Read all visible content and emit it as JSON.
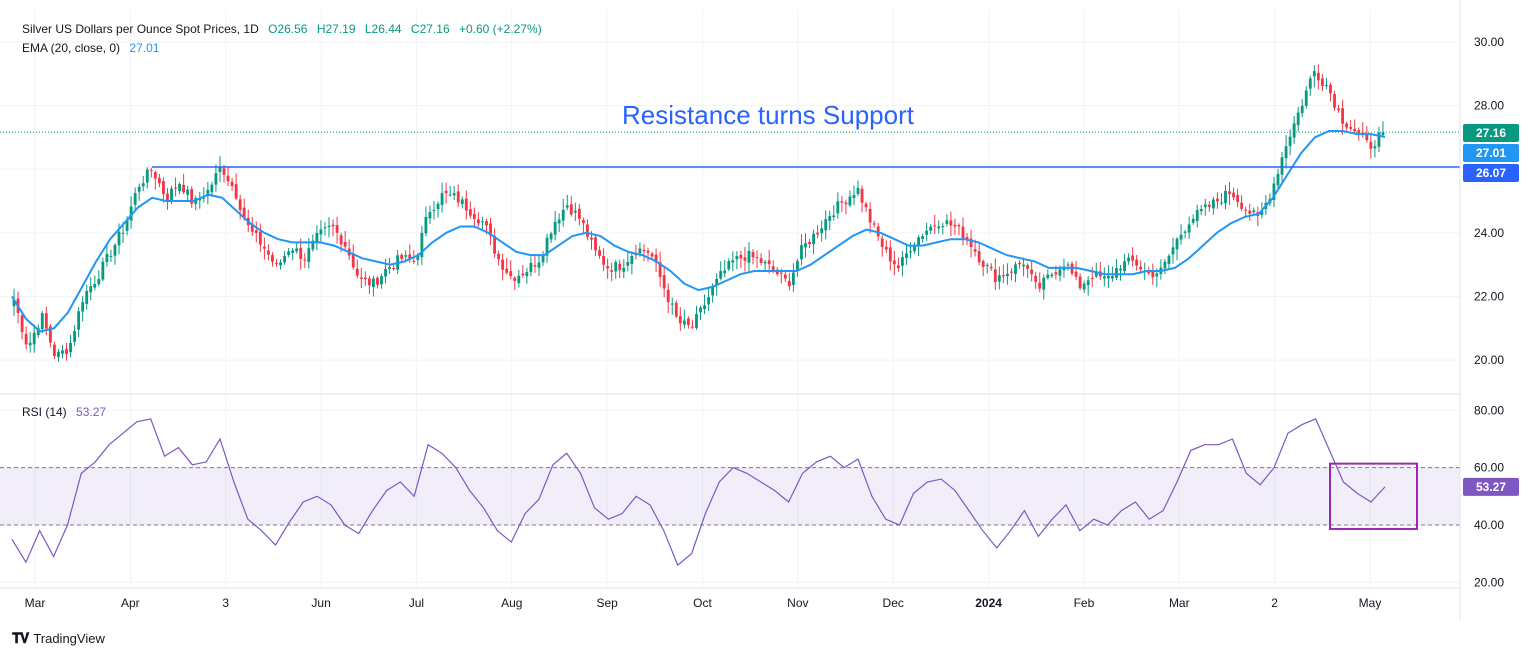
{
  "header": {
    "title": "Silver US Dollars per Ounce Spot Prices, 1D",
    "open": "O26.56",
    "high": "H27.19",
    "low": "L26.44",
    "close": "C27.16",
    "change": "+0.60 (+2.27%)",
    "ema_label": "EMA (20, close, 0)",
    "ema_value": "27.01",
    "rsi_label": "RSI (14)",
    "rsi_value": "53.27"
  },
  "footer": {
    "brand": "TradingView",
    "logo_icon": "tradingview-logo-icon"
  },
  "colors": {
    "up": "#089981",
    "down": "#f23645",
    "ema": "#2196f3",
    "rsi": "#7e57c2",
    "support": "#2962ff",
    "grid": "#f0f3fa"
  },
  "chart_data": [
    {
      "type": "candlestick",
      "title": "Silver US Dollars per Ounce Spot Prices, 1D",
      "ylim": [
        19.0,
        31.0
      ],
      "y_ticks": [
        "30.00",
        "28.00",
        "26.00",
        "24.00",
        "22.00",
        "20.00"
      ],
      "x_labels": [
        "Mar",
        "Apr",
        "3",
        "Jun",
        "Jul",
        "Aug",
        "Sep",
        "Oct",
        "Nov",
        "Dec",
        "2024",
        "Feb",
        "Mar",
        "2",
        "May"
      ],
      "annotation": "Resistance turns Support",
      "support_level": 26.07,
      "current_close": 27.16,
      "price_badges": [
        {
          "label": "27.16",
          "value": 27.16,
          "color": "#089981"
        },
        {
          "label": "27.01",
          "value": 27.01,
          "color": "#2196f3"
        },
        {
          "label": "26.07",
          "value": 26.07,
          "color": "#2962ff"
        }
      ],
      "anchors": [
        21.9,
        20.4,
        21.4,
        20.1,
        20.4,
        22.0,
        22.6,
        23.4,
        24.2,
        25.5,
        26.0,
        25.1,
        25.6,
        24.9,
        25.3,
        26.1,
        25.3,
        24.1,
        23.6,
        22.9,
        23.6,
        23.2,
        23.9,
        24.2,
        23.6,
        22.5,
        22.4,
        22.9,
        23.2,
        23.1,
        24.7,
        25.2,
        25.1,
        24.7,
        24.3,
        23.2,
        22.6,
        22.8,
        23.2,
        24.3,
        24.9,
        24.4,
        23.4,
        22.9,
        23.0,
        23.5,
        23.4,
        22.3,
        21.2,
        21.0,
        21.8,
        22.6,
        23.1,
        23.3,
        23.1,
        22.8,
        22.4,
        23.5,
        24.0,
        24.6,
        25.0,
        25.4,
        24.3,
        23.4,
        22.9,
        23.7,
        24.1,
        24.4,
        24.2,
        23.8,
        23.1,
        22.6,
        22.8,
        23.1,
        22.2,
        22.7,
        23.1,
        22.3,
        22.7,
        22.5,
        23.0,
        23.1,
        22.7,
        22.8,
        23.7,
        24.4,
        24.7,
        25.0,
        25.3,
        24.8,
        24.4,
        25.4,
        26.8,
        27.9,
        29.1,
        28.6,
        27.6,
        27.2,
        26.7,
        27.16
      ],
      "ema": [
        22.0,
        21.3,
        20.9,
        21.0,
        21.5,
        22.3,
        23.1,
        23.8,
        24.3,
        24.8,
        25.1,
        25.0,
        25.0,
        25.0,
        25.2,
        25.1,
        24.7,
        24.3,
        24.0,
        23.8,
        23.7,
        23.7,
        23.7,
        23.6,
        23.4,
        23.2,
        23.1,
        23.0,
        23.1,
        23.3,
        23.7,
        24.0,
        24.2,
        24.2,
        24.0,
        23.7,
        23.4,
        23.3,
        23.3,
        23.6,
        23.9,
        24.0,
        23.9,
        23.6,
        23.4,
        23.3,
        23.1,
        22.8,
        22.4,
        22.2,
        22.3,
        22.5,
        22.7,
        22.8,
        22.8,
        22.8,
        22.8,
        23.0,
        23.3,
        23.6,
        23.9,
        24.1,
        24.0,
        23.8,
        23.6,
        23.6,
        23.7,
        23.8,
        23.8,
        23.7,
        23.5,
        23.3,
        23.2,
        23.1,
        22.9,
        22.9,
        22.9,
        22.8,
        22.7,
        22.7,
        22.7,
        22.8,
        22.8,
        22.9,
        23.2,
        23.6,
        24.0,
        24.3,
        24.5,
        24.6,
        25.1,
        25.8,
        26.5,
        27.0,
        27.2,
        27.2,
        27.1,
        27.1,
        27.01
      ]
    },
    {
      "type": "line",
      "title": "RSI (14)",
      "ylim": [
        18,
        85
      ],
      "y_ticks": [
        "80.00",
        "60.00",
        "40.00",
        "20.00"
      ],
      "band": [
        40,
        60
      ],
      "highlight_box": [
        40,
        60
      ],
      "values": [
        35,
        27,
        38,
        29,
        40,
        58,
        62,
        68,
        72,
        76,
        77,
        64,
        67,
        61,
        62,
        70,
        55,
        42,
        38,
        33,
        41,
        48,
        50,
        47,
        40,
        37,
        45,
        52,
        55,
        50,
        68,
        65,
        60,
        52,
        46,
        38,
        34,
        44,
        49,
        61,
        65,
        58,
        46,
        42,
        44,
        50,
        47,
        38,
        26,
        30,
        44,
        55,
        60,
        58,
        55,
        52,
        48,
        58,
        62,
        64,
        60,
        63,
        50,
        42,
        40,
        51,
        55,
        56,
        52,
        45,
        38,
        32,
        38,
        45,
        36,
        42,
        47,
        38,
        42,
        40,
        45,
        48,
        42,
        45,
        55,
        66,
        68,
        68,
        70,
        58,
        54,
        60,
        72,
        75,
        77,
        66,
        55,
        51,
        48,
        53.27
      ],
      "current_value": 53.27
    }
  ]
}
